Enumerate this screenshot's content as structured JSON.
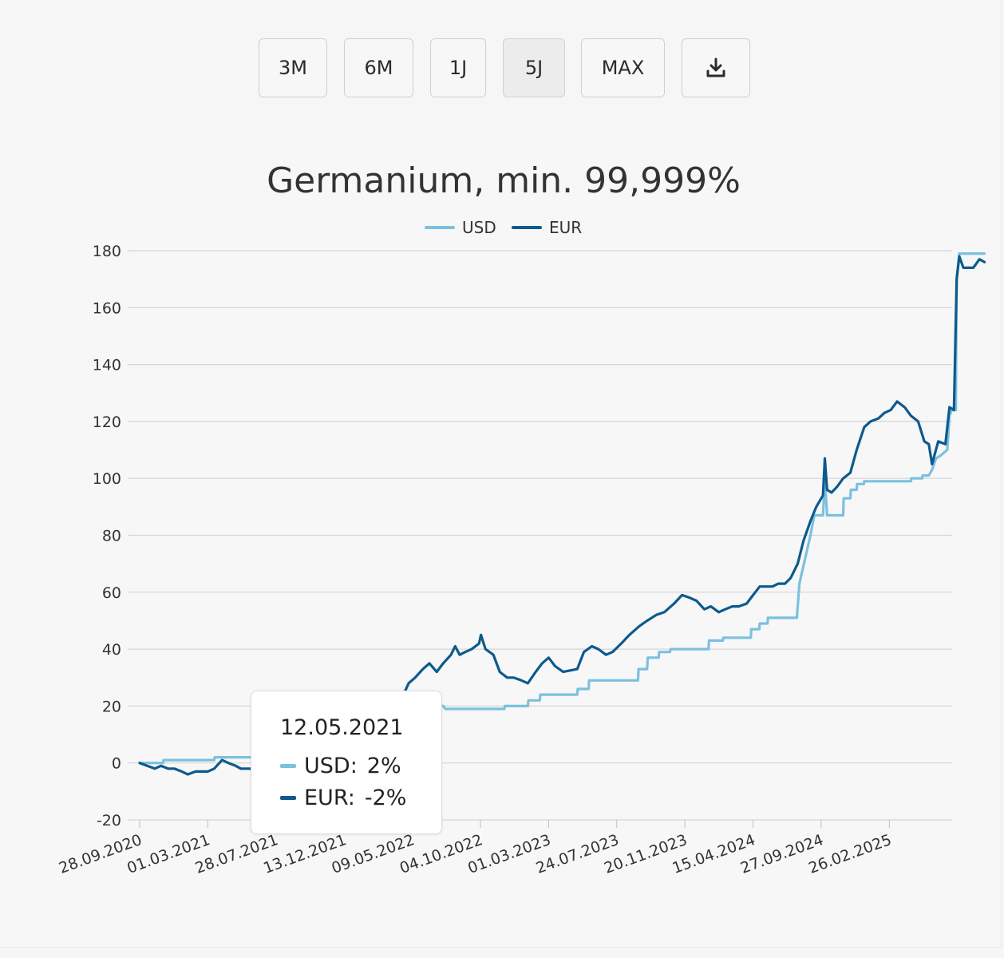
{
  "toolbar": {
    "buttons": [
      {
        "label": "3M"
      },
      {
        "label": "6M"
      },
      {
        "label": "1J"
      },
      {
        "label": "5J",
        "active": true
      },
      {
        "label": "MAX"
      }
    ],
    "download_icon": "download-icon"
  },
  "tooltip": {
    "date": "12.05.2021",
    "rows": [
      {
        "series": "USD",
        "label": "USD:",
        "value": "2%"
      },
      {
        "series": "EUR",
        "label": "EUR:",
        "value": "-2%"
      }
    ]
  },
  "chart_data": {
    "type": "line",
    "title": "Germanium, min. 99,999%",
    "legend_position": "top-center",
    "grid": true,
    "ylim": [
      -20,
      180
    ],
    "yticks": [
      "-20",
      "0",
      "20",
      "40",
      "60",
      "80",
      "100",
      "120",
      "140",
      "160",
      "180"
    ],
    "xticks": [
      "28.09.2020",
      "01.03.2021",
      "28.07.2021",
      "13.12.2021",
      "09.05.2022",
      "04.10.2022",
      "01.03.2023",
      "24.07.2023",
      "20.11.2023",
      "15.04.2024",
      "27.09.2024",
      "26.02.2025"
    ],
    "xlim": [
      "28.09.2020",
      "26.09.2025"
    ],
    "series": [
      {
        "name": "USD",
        "color": "#7cc0df",
        "points": [
          [
            "28.09.2020",
            0
          ],
          [
            "20.11.2020",
            0
          ],
          [
            "21.11.2020",
            1
          ],
          [
            "15.03.2021",
            1
          ],
          [
            "16.03.2021",
            2
          ],
          [
            "20.08.2021",
            2
          ],
          [
            "21.08.2021",
            3
          ],
          [
            "15.11.2021",
            3
          ],
          [
            "20.01.2022",
            6
          ],
          [
            "10.03.2022",
            12
          ],
          [
            "15.04.2022",
            22
          ],
          [
            "10.06.2022",
            21
          ],
          [
            "15.07.2022",
            20
          ],
          [
            "20.07.2022",
            19
          ],
          [
            "25.11.2022",
            19
          ],
          [
            "26.11.2022",
            20
          ],
          [
            "15.01.2023",
            20
          ],
          [
            "16.01.2023",
            22
          ],
          [
            "10.02.2023",
            22
          ],
          [
            "11.02.2023",
            24
          ],
          [
            "01.05.2023",
            24
          ],
          [
            "02.05.2023",
            26
          ],
          [
            "25.05.2023",
            26
          ],
          [
            "26.05.2023",
            29
          ],
          [
            "30.08.2023",
            29
          ],
          [
            "31.08.2023",
            33
          ],
          [
            "15.09.2023",
            33
          ],
          [
            "16.09.2023",
            37
          ],
          [
            "05.10.2023",
            37
          ],
          [
            "06.10.2023",
            39
          ],
          [
            "25.10.2023",
            39
          ],
          [
            "26.10.2023",
            40
          ],
          [
            "10.01.2024",
            40
          ],
          [
            "11.01.2024",
            43
          ],
          [
            "10.02.2024",
            43
          ],
          [
            "11.02.2024",
            44
          ],
          [
            "01.04.2024",
            44
          ],
          [
            "02.04.2024",
            44
          ],
          [
            "10.04.2024",
            44
          ],
          [
            "11.04.2024",
            47
          ],
          [
            "30.04.2024",
            47
          ],
          [
            "01.05.2024",
            49
          ],
          [
            "20.05.2024",
            49
          ],
          [
            "21.05.2024",
            51
          ],
          [
            "30.07.2024",
            51
          ],
          [
            "05.08.2024",
            63
          ],
          [
            "01.09.2024",
            80
          ],
          [
            "10.09.2024",
            87
          ],
          [
            "01.10.2024",
            87
          ],
          [
            "05.10.2024",
            100
          ],
          [
            "10.10.2024",
            87
          ],
          [
            "15.11.2024",
            87
          ],
          [
            "16.11.2024",
            93
          ],
          [
            "01.12.2024",
            93
          ],
          [
            "02.12.2024",
            96
          ],
          [
            "15.12.2024",
            96
          ],
          [
            "16.12.2024",
            98
          ],
          [
            "31.12.2024",
            98
          ],
          [
            "01.01.2025",
            99
          ],
          [
            "15.04.2025",
            99
          ],
          [
            "16.04.2025",
            100
          ],
          [
            "10.05.2025",
            100
          ],
          [
            "11.05.2025",
            101
          ],
          [
            "25.05.2025",
            101
          ],
          [
            "01.06.2025",
            103
          ],
          [
            "10.06.2025",
            107
          ],
          [
            "20.06.2025",
            108
          ],
          [
            "05.07.2025",
            110
          ],
          [
            "10.07.2025",
            122
          ],
          [
            "15.07.2025",
            124
          ],
          [
            "24.07.2025",
            124
          ],
          [
            "26.07.2025",
            170
          ],
          [
            "01.08.2025",
            179
          ],
          [
            "26.09.2025",
            179
          ]
        ]
      },
      {
        "name": "EUR",
        "color": "#0d5a8c",
        "points": [
          [
            "28.09.2020",
            0
          ],
          [
            "15.10.2020",
            -1
          ],
          [
            "01.11.2020",
            -2
          ],
          [
            "15.11.2020",
            -1
          ],
          [
            "01.12.2020",
            -2
          ],
          [
            "15.12.2020",
            -2
          ],
          [
            "01.01.2021",
            -3
          ],
          [
            "15.01.2021",
            -4
          ],
          [
            "01.02.2021",
            -3
          ],
          [
            "01.03.2021",
            -3
          ],
          [
            "15.03.2021",
            -2
          ],
          [
            "01.04.2021",
            1
          ],
          [
            "15.04.2021",
            0
          ],
          [
            "01.05.2021",
            -1
          ],
          [
            "12.05.2021",
            -2
          ],
          [
            "01.06.2021",
            -2
          ],
          [
            "15.06.2021",
            -3
          ],
          [
            "20.04.2022",
            24
          ],
          [
            "01.05.2022",
            28
          ],
          [
            "15.05.2022",
            30
          ],
          [
            "01.06.2022",
            33
          ],
          [
            "15.06.2022",
            35
          ],
          [
            "01.07.2022",
            32
          ],
          [
            "15.07.2022",
            35
          ],
          [
            "01.08.2022",
            38
          ],
          [
            "10.08.2022",
            41
          ],
          [
            "20.08.2022",
            38
          ],
          [
            "01.09.2022",
            39
          ],
          [
            "15.09.2022",
            40
          ],
          [
            "01.10.2022",
            42
          ],
          [
            "05.10.2022",
            45
          ],
          [
            "15.10.2022",
            40
          ],
          [
            "01.11.2022",
            38
          ],
          [
            "15.11.2022",
            32
          ],
          [
            "01.12.2022",
            30
          ],
          [
            "15.12.2022",
            30
          ],
          [
            "01.01.2023",
            29
          ],
          [
            "15.01.2023",
            28
          ],
          [
            "01.02.2023",
            32
          ],
          [
            "15.02.2023",
            35
          ],
          [
            "01.03.2023",
            37
          ],
          [
            "15.03.2023",
            34
          ],
          [
            "01.04.2023",
            32
          ],
          [
            "01.05.2023",
            33
          ],
          [
            "15.05.2023",
            39
          ],
          [
            "01.06.2023",
            41
          ],
          [
            "15.06.2023",
            40
          ],
          [
            "01.07.2023",
            38
          ],
          [
            "15.07.2023",
            39
          ],
          [
            "01.08.2023",
            42
          ],
          [
            "15.08.2023",
            45
          ],
          [
            "01.09.2023",
            48
          ],
          [
            "15.09.2023",
            50
          ],
          [
            "01.10.2023",
            52
          ],
          [
            "15.10.2023",
            53
          ],
          [
            "01.11.2023",
            56
          ],
          [
            "15.11.2023",
            59
          ],
          [
            "01.12.2023",
            58
          ],
          [
            "15.12.2023",
            57
          ],
          [
            "01.01.2024",
            54
          ],
          [
            "15.01.2024",
            55
          ],
          [
            "01.02.2024",
            53
          ],
          [
            "15.02.2024",
            54
          ],
          [
            "01.03.2024",
            55
          ],
          [
            "15.03.2024",
            55
          ],
          [
            "01.04.2024",
            56
          ],
          [
            "15.04.2024",
            59
          ],
          [
            "01.05.2024",
            62
          ],
          [
            "15.05.2024",
            62
          ],
          [
            "01.06.2024",
            62
          ],
          [
            "15.06.2024",
            63
          ],
          [
            "01.07.2024",
            63
          ],
          [
            "15.07.2024",
            65
          ],
          [
            "01.08.2024",
            70
          ],
          [
            "15.08.2024",
            78
          ],
          [
            "01.09.2024",
            85
          ],
          [
            "15.09.2024",
            90
          ],
          [
            "01.10.2024",
            94
          ],
          [
            "05.10.2024",
            107
          ],
          [
            "10.10.2024",
            96
          ],
          [
            "20.10.2024",
            95
          ],
          [
            "01.11.2024",
            97
          ],
          [
            "15.11.2024",
            100
          ],
          [
            "01.12.2024",
            102
          ],
          [
            "15.12.2024",
            110
          ],
          [
            "01.01.2025",
            118
          ],
          [
            "15.01.2025",
            120
          ],
          [
            "01.02.2025",
            121
          ],
          [
            "15.02.2025",
            123
          ],
          [
            "01.03.2025",
            124
          ],
          [
            "15.03.2025",
            127
          ],
          [
            "01.04.2025",
            125
          ],
          [
            "15.04.2025",
            122
          ],
          [
            "01.05.2025",
            120
          ],
          [
            "15.05.2025",
            113
          ],
          [
            "25.05.2025",
            112
          ],
          [
            "01.06.2025",
            105
          ],
          [
            "15.06.2025",
            113
          ],
          [
            "01.07.2025",
            112
          ],
          [
            "10.07.2025",
            125
          ],
          [
            "20.07.2025",
            124
          ],
          [
            "26.07.2025",
            170
          ],
          [
            "01.08.2025",
            178
          ],
          [
            "10.08.2025",
            174
          ],
          [
            "01.09.2025",
            174
          ],
          [
            "15.09.2025",
            177
          ],
          [
            "26.09.2025",
            176
          ]
        ]
      }
    ]
  }
}
